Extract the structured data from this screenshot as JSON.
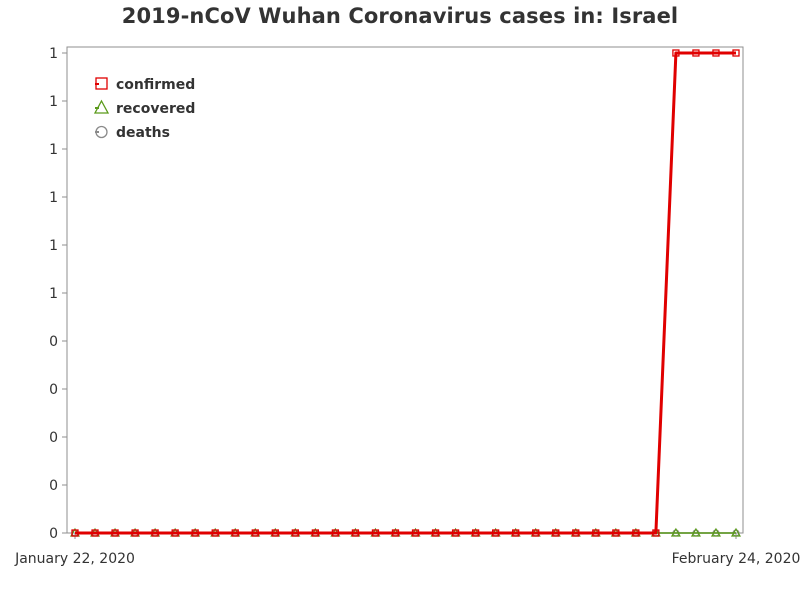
{
  "chart_data": {
    "type": "line",
    "title": "2019-nCoV Wuhan Coronavirus cases in: Israel",
    "xlabel": "",
    "ylabel": "",
    "x_start_label": "January 22, 2020",
    "x_end_label": "February 24, 2020",
    "x": [
      "2020-01-22",
      "2020-01-23",
      "2020-01-24",
      "2020-01-25",
      "2020-01-26",
      "2020-01-27",
      "2020-01-28",
      "2020-01-29",
      "2020-01-30",
      "2020-01-31",
      "2020-02-01",
      "2020-02-02",
      "2020-02-03",
      "2020-02-04",
      "2020-02-05",
      "2020-02-06",
      "2020-02-07",
      "2020-02-08",
      "2020-02-09",
      "2020-02-10",
      "2020-02-11",
      "2020-02-12",
      "2020-02-13",
      "2020-02-14",
      "2020-02-15",
      "2020-02-16",
      "2020-02-17",
      "2020-02-18",
      "2020-02-19",
      "2020-02-20",
      "2020-02-21",
      "2020-02-22",
      "2020-02-23",
      "2020-02-24"
    ],
    "ylim": [
      0,
      1
    ],
    "y_tick_values": [
      0,
      0.1,
      0.2,
      0.3,
      0.4,
      0.5,
      0.6,
      0.7,
      0.8,
      0.9,
      1
    ],
    "y_tick_labels": [
      "0",
      "0",
      "0",
      "0",
      "0",
      "1",
      "1",
      "1",
      "1",
      "1",
      "1"
    ],
    "grid": false,
    "legend_position": "top-left",
    "series": [
      {
        "name": "confirmed",
        "color": "#e00000",
        "marker": "square",
        "values": [
          0,
          0,
          0,
          0,
          0,
          0,
          0,
          0,
          0,
          0,
          0,
          0,
          0,
          0,
          0,
          0,
          0,
          0,
          0,
          0,
          0,
          0,
          0,
          0,
          0,
          0,
          0,
          0,
          0,
          0,
          1,
          1,
          1,
          1
        ]
      },
      {
        "name": "recovered",
        "color": "#5a9a1a",
        "marker": "triangle",
        "values": [
          0,
          0,
          0,
          0,
          0,
          0,
          0,
          0,
          0,
          0,
          0,
          0,
          0,
          0,
          0,
          0,
          0,
          0,
          0,
          0,
          0,
          0,
          0,
          0,
          0,
          0,
          0,
          0,
          0,
          0,
          0,
          0,
          0,
          0
        ]
      },
      {
        "name": "deaths",
        "color": "#8a8a8a",
        "marker": "circle",
        "values": [
          0,
          0,
          0,
          0,
          0,
          0,
          0,
          0,
          0,
          0,
          0,
          0,
          0,
          0,
          0,
          0,
          0,
          0,
          0,
          0,
          0,
          0,
          0,
          0,
          0,
          0,
          0,
          0,
          0,
          0,
          0,
          0,
          0,
          0
        ]
      }
    ]
  }
}
